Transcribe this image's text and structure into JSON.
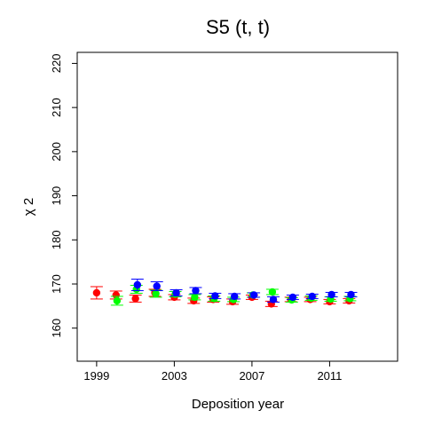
{
  "chart_data": {
    "type": "scatter",
    "title": "S5  (t, t)",
    "xlabel": "Deposition year",
    "ylabel": "χ 2",
    "xlim": [
      1998,
      2014.5
    ],
    "ylim": [
      152.5,
      222.5
    ],
    "xticks": [
      1999,
      2003,
      2007,
      2011
    ],
    "yticks": [
      160,
      170,
      180,
      190,
      200,
      210,
      220
    ],
    "grid": false,
    "series": [
      {
        "color": "#ff0000",
        "x_offset": 0,
        "points": [
          {
            "x": 1999,
            "y": 168.0,
            "lo": 166.6,
            "hi": 169.4
          },
          {
            "x": 2000,
            "y": 167.5,
            "lo": 166.6,
            "hi": 168.4
          },
          {
            "x": 2001,
            "y": 166.7,
            "lo": 165.9,
            "hi": 167.5
          },
          {
            "x": 2002,
            "y": 168.0,
            "lo": 167.2,
            "hi": 168.8
          },
          {
            "x": 2003,
            "y": 167.0,
            "lo": 166.4,
            "hi": 167.6
          },
          {
            "x": 2004,
            "y": 166.2,
            "lo": 165.6,
            "hi": 166.8
          },
          {
            "x": 2005,
            "y": 166.5,
            "lo": 165.9,
            "hi": 167.1
          },
          {
            "x": 2006,
            "y": 166.0,
            "lo": 165.4,
            "hi": 166.6
          },
          {
            "x": 2007,
            "y": 167.0,
            "lo": 166.5,
            "hi": 167.5
          },
          {
            "x": 2008,
            "y": 165.5,
            "lo": 164.9,
            "hi": 166.1
          },
          {
            "x": 2009,
            "y": 166.5,
            "lo": 166.0,
            "hi": 167.0
          },
          {
            "x": 2010,
            "y": 166.5,
            "lo": 166.0,
            "hi": 167.0
          },
          {
            "x": 2011,
            "y": 166.0,
            "lo": 165.5,
            "hi": 166.5
          },
          {
            "x": 2012,
            "y": 166.2,
            "lo": 165.7,
            "hi": 166.7
          }
        ]
      },
      {
        "color": "#00ff00",
        "x_offset": 0.05,
        "points": [
          {
            "x": 2000,
            "y": 166.2,
            "lo": 165.2,
            "hi": 167.2
          },
          {
            "x": 2001,
            "y": 168.8,
            "lo": 167.9,
            "hi": 169.7
          },
          {
            "x": 2002,
            "y": 167.8,
            "lo": 167.0,
            "hi": 168.6
          },
          {
            "x": 2003,
            "y": 167.7,
            "lo": 167.1,
            "hi": 168.3
          },
          {
            "x": 2004,
            "y": 167.0,
            "lo": 166.4,
            "hi": 167.6
          },
          {
            "x": 2005,
            "y": 166.7,
            "lo": 166.1,
            "hi": 167.3
          },
          {
            "x": 2006,
            "y": 166.5,
            "lo": 166.0,
            "hi": 167.0
          },
          {
            "x": 2007,
            "y": 167.5,
            "lo": 167.0,
            "hi": 168.0
          },
          {
            "x": 2008,
            "y": 168.2,
            "lo": 167.6,
            "hi": 168.8
          },
          {
            "x": 2009,
            "y": 166.4,
            "lo": 165.9,
            "hi": 166.9
          },
          {
            "x": 2010,
            "y": 166.8,
            "lo": 166.3,
            "hi": 167.3
          },
          {
            "x": 2011,
            "y": 166.6,
            "lo": 166.1,
            "hi": 167.1
          },
          {
            "x": 2012,
            "y": 166.7,
            "lo": 166.2,
            "hi": 167.2
          }
        ]
      },
      {
        "color": "#0000ff",
        "x_offset": 0.1,
        "points": [
          {
            "x": 2001,
            "y": 169.8,
            "lo": 168.5,
            "hi": 171.1
          },
          {
            "x": 2002,
            "y": 169.5,
            "lo": 168.5,
            "hi": 170.5
          },
          {
            "x": 2003,
            "y": 168.0,
            "lo": 167.3,
            "hi": 168.7
          },
          {
            "x": 2004,
            "y": 168.5,
            "lo": 167.8,
            "hi": 169.2
          },
          {
            "x": 2005,
            "y": 167.3,
            "lo": 166.7,
            "hi": 167.9
          },
          {
            "x": 2006,
            "y": 167.2,
            "lo": 166.6,
            "hi": 167.8
          },
          {
            "x": 2007,
            "y": 167.5,
            "lo": 167.0,
            "hi": 168.0
          },
          {
            "x": 2008,
            "y": 166.5,
            "lo": 165.9,
            "hi": 167.1
          },
          {
            "x": 2009,
            "y": 167.0,
            "lo": 166.5,
            "hi": 167.5
          },
          {
            "x": 2010,
            "y": 167.2,
            "lo": 166.7,
            "hi": 167.7
          },
          {
            "x": 2011,
            "y": 167.6,
            "lo": 167.1,
            "hi": 168.1
          },
          {
            "x": 2012,
            "y": 167.6,
            "lo": 167.1,
            "hi": 168.1
          }
        ]
      }
    ]
  }
}
